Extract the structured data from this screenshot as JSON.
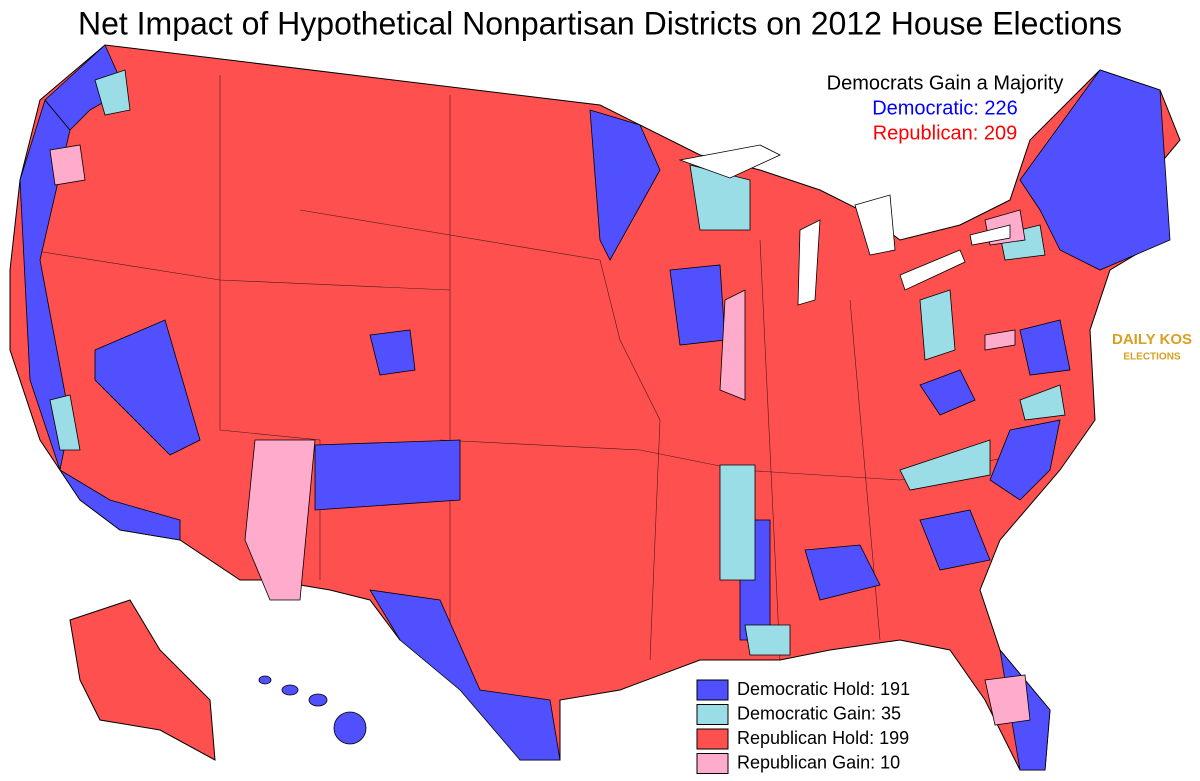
{
  "header": {
    "title": "Net Impact of Hypothetical Nonpartisan Districts on 2012 House Elections"
  },
  "summary": {
    "heading": "Democrats Gain a Majority",
    "lines": [
      {
        "text": "Democratic: 226",
        "color": "#0000ff"
      },
      {
        "text": "Republican: 209",
        "color": "#ff0000"
      }
    ]
  },
  "legend": {
    "items": [
      {
        "text": "Democratic Hold: 191",
        "color": "#5050ff"
      },
      {
        "text": "Democratic Gain: 35",
        "color": "#9adde6"
      },
      {
        "text": "Republican Hold: 199",
        "color": "#ff5050"
      },
      {
        "text": "Republican Gain: 10",
        "color": "#ffabcc"
      }
    ]
  },
  "logo": {
    "line1": "DAILY KOS",
    "line2": "ELECTIONS"
  }
}
